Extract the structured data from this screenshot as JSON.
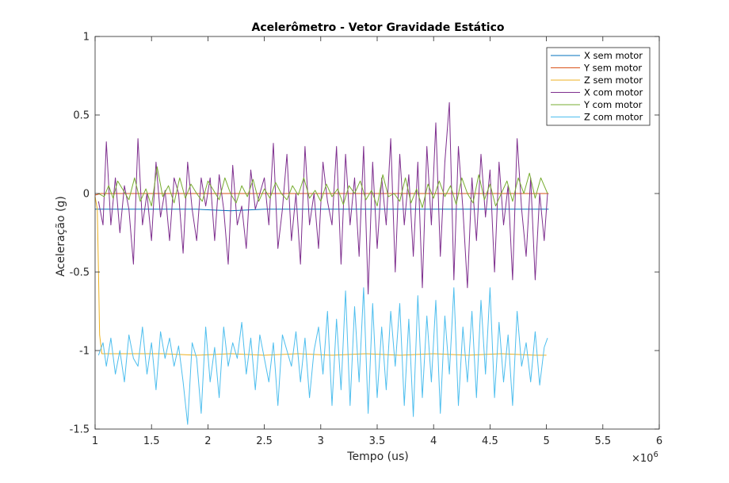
{
  "chart_data": {
    "type": "line",
    "title": "Acelerômetro - Vetor Gravidade Estático",
    "xlabel": "Tempo (us)",
    "ylabel": "Aceleração (g)",
    "x_exponent_label": "×10",
    "x_exponent_power": "6",
    "xlim": [
      1,
      6
    ],
    "ylim": [
      -1.5,
      1
    ],
    "xticks": [
      1,
      1.5,
      2,
      2.5,
      3,
      3.5,
      4,
      4.5,
      5,
      5.5,
      6
    ],
    "xtick_labels": [
      "1",
      "1.5",
      "2",
      "2.5",
      "3",
      "3.5",
      "4",
      "4.5",
      "5",
      "5.5",
      "6"
    ],
    "yticks": [
      -1.5,
      -1,
      -0.5,
      0,
      0.5,
      1
    ],
    "ytick_labels": [
      "-1.5",
      "-1",
      "-0.5",
      "0",
      "0.5",
      "1"
    ],
    "grid": false,
    "legend_position": "top-right",
    "series": [
      {
        "name": "X sem motor",
        "color": "#0072bd",
        "x": [
          1.0,
          1.05,
          1.3,
          1.6,
          1.9,
          2.2,
          2.5,
          2.8,
          3.1,
          3.4,
          3.7,
          4.0,
          4.3,
          4.6,
          4.9,
          5.02
        ],
        "y": [
          -0.1,
          -0.1,
          -0.1,
          -0.1,
          -0.1,
          -0.11,
          -0.1,
          -0.1,
          -0.1,
          -0.1,
          -0.1,
          -0.1,
          -0.1,
          -0.1,
          -0.1,
          -0.1
        ]
      },
      {
        "name": "Y sem motor",
        "color": "#d95319",
        "x": [
          1.0,
          1.05,
          1.3,
          1.6,
          1.9,
          2.2,
          2.5,
          2.8,
          3.1,
          3.4,
          3.7,
          4.0,
          4.3,
          4.6,
          4.9,
          5.02
        ],
        "y": [
          -0.01,
          0.0,
          0.0,
          0.0,
          0.0,
          0.0,
          0.0,
          0.0,
          0.0,
          0.0,
          0.0,
          0.0,
          0.0,
          0.0,
          0.0,
          0.0
        ]
      },
      {
        "name": "Z sem motor",
        "color": "#edb120",
        "x": [
          1.0,
          1.02,
          1.03,
          1.04,
          1.06,
          1.3,
          1.6,
          1.9,
          2.2,
          2.5,
          2.8,
          3.1,
          3.4,
          3.7,
          4.0,
          4.3,
          4.6,
          4.9,
          5.0
        ],
        "y": [
          -0.02,
          -0.1,
          -0.5,
          -0.9,
          -1.02,
          -1.02,
          -1.02,
          -1.03,
          -1.02,
          -1.03,
          -1.02,
          -1.03,
          -1.02,
          -1.03,
          -1.02,
          -1.03,
          -1.02,
          -1.03,
          -1.03
        ]
      },
      {
        "name": "X com motor",
        "color": "#7e2f8e",
        "x": [
          1.03,
          1.07,
          1.1,
          1.14,
          1.18,
          1.22,
          1.26,
          1.3,
          1.34,
          1.38,
          1.42,
          1.46,
          1.5,
          1.54,
          1.58,
          1.62,
          1.66,
          1.7,
          1.74,
          1.78,
          1.82,
          1.86,
          1.9,
          1.94,
          1.98,
          2.02,
          2.06,
          2.1,
          2.14,
          2.18,
          2.22,
          2.26,
          2.3,
          2.34,
          2.38,
          2.42,
          2.46,
          2.5,
          2.54,
          2.58,
          2.62,
          2.66,
          2.7,
          2.74,
          2.78,
          2.82,
          2.86,
          2.9,
          2.94,
          2.98,
          3.02,
          3.06,
          3.1,
          3.14,
          3.18,
          3.22,
          3.26,
          3.3,
          3.34,
          3.38,
          3.42,
          3.46,
          3.5,
          3.54,
          3.58,
          3.62,
          3.66,
          3.7,
          3.74,
          3.78,
          3.82,
          3.86,
          3.9,
          3.94,
          3.98,
          4.02,
          4.06,
          4.1,
          4.14,
          4.18,
          4.22,
          4.26,
          4.3,
          4.34,
          4.38,
          4.42,
          4.46,
          4.5,
          4.54,
          4.58,
          4.62,
          4.66,
          4.7,
          4.74,
          4.78,
          4.82,
          4.86,
          4.9,
          4.94,
          4.98,
          5.01
        ],
        "y": [
          -0.05,
          -0.2,
          0.33,
          -0.2,
          0.1,
          -0.25,
          0.05,
          -0.1,
          -0.45,
          0.35,
          -0.2,
          0.0,
          -0.3,
          0.2,
          -0.15,
          0.02,
          -0.3,
          0.1,
          0.0,
          -0.38,
          0.2,
          -0.1,
          -0.3,
          0.1,
          -0.08,
          0.1,
          -0.3,
          0.12,
          -0.1,
          -0.45,
          0.18,
          -0.2,
          -0.08,
          -0.35,
          0.15,
          -0.1,
          0.0,
          0.1,
          -0.2,
          0.32,
          -0.35,
          -0.1,
          0.25,
          -0.3,
          0.0,
          -0.45,
          0.3,
          -0.2,
          0.0,
          -0.35,
          0.2,
          -0.05,
          -0.2,
          0.3,
          -0.45,
          0.25,
          -0.2,
          0.1,
          -0.4,
          0.3,
          -0.64,
          0.2,
          -0.35,
          0.1,
          -0.2,
          0.35,
          -0.5,
          0.25,
          -0.2,
          0.12,
          -0.4,
          0.2,
          -0.6,
          0.3,
          -0.2,
          0.45,
          -0.4,
          0.2,
          0.58,
          -0.55,
          0.3,
          -0.1,
          -0.6,
          0.1,
          -0.3,
          0.25,
          -0.15,
          0.15,
          -0.5,
          0.2,
          -0.2,
          0.05,
          -0.55,
          0.35,
          -0.1,
          -0.4,
          0.1,
          -0.55,
          0.0,
          -0.3,
          0.0
        ]
      },
      {
        "name": "Y com motor",
        "color": "#77ac30",
        "x": [
          1.03,
          1.08,
          1.12,
          1.16,
          1.2,
          1.25,
          1.3,
          1.35,
          1.4,
          1.45,
          1.5,
          1.55,
          1.6,
          1.65,
          1.7,
          1.75,
          1.8,
          1.85,
          1.9,
          1.95,
          2.0,
          2.05,
          2.1,
          2.15,
          2.2,
          2.25,
          2.3,
          2.35,
          2.4,
          2.45,
          2.5,
          2.55,
          2.6,
          2.65,
          2.7,
          2.75,
          2.8,
          2.85,
          2.9,
          2.95,
          3.0,
          3.05,
          3.1,
          3.15,
          3.2,
          3.25,
          3.3,
          3.35,
          3.4,
          3.45,
          3.5,
          3.55,
          3.6,
          3.65,
          3.7,
          3.75,
          3.8,
          3.85,
          3.9,
          3.95,
          4.0,
          4.05,
          4.1,
          4.15,
          4.2,
          4.25,
          4.3,
          4.35,
          4.4,
          4.45,
          4.5,
          4.55,
          4.6,
          4.65,
          4.7,
          4.75,
          4.8,
          4.85,
          4.9,
          4.95,
          5.01
        ],
        "y": [
          0.0,
          -0.02,
          0.05,
          -0.03,
          0.08,
          0.02,
          -0.04,
          0.1,
          -0.05,
          0.03,
          -0.08,
          0.17,
          -0.02,
          0.05,
          -0.06,
          0.1,
          -0.03,
          0.06,
          0.0,
          -0.05,
          0.08,
          0.02,
          -0.04,
          0.1,
          0.0,
          -0.06,
          0.05,
          -0.02,
          0.09,
          -0.05,
          0.03,
          -0.03,
          0.07,
          0.0,
          -0.04,
          0.05,
          -0.01,
          0.1,
          -0.03,
          0.02,
          -0.05,
          0.06,
          -0.02,
          0.03,
          -0.07,
          0.05,
          0.0,
          0.08,
          -0.04,
          0.02,
          -0.08,
          0.12,
          -0.02,
          0.0,
          -0.05,
          0.1,
          -0.06,
          0.03,
          -0.09,
          0.06,
          -0.03,
          0.08,
          -0.02,
          0.05,
          -0.07,
          0.1,
          0.0,
          -0.06,
          0.12,
          -0.04,
          0.06,
          -0.08,
          0.0,
          0.08,
          -0.05,
          0.1,
          0.0,
          0.13,
          -0.03,
          0.1,
          0.0
        ]
      },
      {
        "name": "Z com motor",
        "color": "#4dbeee",
        "x": [
          1.03,
          1.07,
          1.1,
          1.14,
          1.18,
          1.22,
          1.26,
          1.3,
          1.34,
          1.38,
          1.42,
          1.46,
          1.5,
          1.54,
          1.58,
          1.62,
          1.66,
          1.7,
          1.74,
          1.78,
          1.82,
          1.86,
          1.9,
          1.94,
          1.98,
          2.02,
          2.06,
          2.1,
          2.14,
          2.18,
          2.22,
          2.26,
          2.3,
          2.34,
          2.38,
          2.42,
          2.46,
          2.5,
          2.54,
          2.58,
          2.62,
          2.66,
          2.7,
          2.74,
          2.78,
          2.82,
          2.86,
          2.9,
          2.94,
          2.98,
          3.02,
          3.06,
          3.1,
          3.14,
          3.18,
          3.22,
          3.26,
          3.3,
          3.34,
          3.38,
          3.42,
          3.46,
          3.5,
          3.54,
          3.58,
          3.62,
          3.66,
          3.7,
          3.74,
          3.78,
          3.82,
          3.86,
          3.9,
          3.94,
          3.98,
          4.02,
          4.06,
          4.1,
          4.14,
          4.18,
          4.22,
          4.26,
          4.3,
          4.34,
          4.38,
          4.42,
          4.46,
          4.5,
          4.54,
          4.58,
          4.62,
          4.66,
          4.7,
          4.74,
          4.78,
          4.82,
          4.86,
          4.9,
          4.94,
          4.98,
          5.01
        ],
        "y": [
          -1.03,
          -0.95,
          -1.1,
          -0.92,
          -1.15,
          -1.0,
          -1.2,
          -0.9,
          -1.05,
          -1.1,
          -0.85,
          -1.15,
          -0.95,
          -1.25,
          -0.88,
          -1.05,
          -0.92,
          -1.1,
          -0.97,
          -1.2,
          -1.47,
          -0.95,
          -1.05,
          -1.4,
          -0.85,
          -1.2,
          -0.98,
          -1.3,
          -0.85,
          -1.1,
          -0.95,
          -1.05,
          -0.82,
          -1.15,
          -0.92,
          -1.25,
          -0.9,
          -1.05,
          -1.2,
          -0.95,
          -1.35,
          -0.9,
          -1.0,
          -1.1,
          -0.88,
          -1.2,
          -0.92,
          -1.3,
          -1.0,
          -0.85,
          -1.15,
          -0.75,
          -1.35,
          -0.8,
          -1.25,
          -0.62,
          -1.35,
          -0.72,
          -1.2,
          -0.6,
          -1.4,
          -0.7,
          -1.3,
          -0.85,
          -1.25,
          -0.75,
          -1.1,
          -0.7,
          -1.35,
          -0.8,
          -1.42,
          -0.65,
          -1.3,
          -0.78,
          -1.2,
          -0.68,
          -1.4,
          -0.78,
          -1.15,
          -0.6,
          -1.35,
          -0.85,
          -1.2,
          -0.75,
          -1.3,
          -0.68,
          -1.15,
          -0.6,
          -1.3,
          -0.82,
          -1.2,
          -0.9,
          -1.35,
          -0.75,
          -1.1,
          -0.95,
          -1.2,
          -0.88,
          -1.22,
          -0.98,
          -0.92
        ]
      }
    ]
  }
}
